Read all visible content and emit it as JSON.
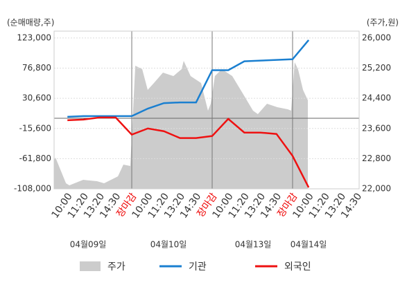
{
  "chart_data": {
    "type": "line",
    "y_label": "(순매매량,주)",
    "y2_label": "(주가,원)",
    "categories": [
      "10:00",
      "11:20",
      "13:20",
      "14:30",
      "장마감",
      "10:00",
      "11:20",
      "13:20",
      "14:30",
      "장마감",
      "10:00",
      "11:20",
      "13:20",
      "14:30",
      "장마감",
      "10:00",
      "11:20",
      "13:20",
      "14:30"
    ],
    "dates": [
      "04월09일",
      "04월10일",
      "04월13일",
      "04월14일"
    ],
    "xlim": [
      -0.83,
      18.14
    ],
    "ylim": [
      -108000,
      133500
    ],
    "yticks": [
      {
        "value": 123000,
        "label": "123,000"
      },
      {
        "value": 76800,
        "label": "76,800"
      },
      {
        "value": 30600,
        "label": "30,600"
      },
      {
        "value": -15600,
        "label": "-15,600"
      },
      {
        "value": -61800,
        "label": "-61,800"
      },
      {
        "value": -108000,
        "label": "-108,000"
      }
    ],
    "y2lim": [
      22000,
      26183
    ],
    "y2ticks": [
      {
        "value": 26000,
        "label": "26,000"
      },
      {
        "value": 25200,
        "label": "25,200"
      },
      {
        "value": 24400,
        "label": "24,400"
      },
      {
        "value": 23600,
        "label": "23,600"
      },
      {
        "value": 22800,
        "label": "22,800"
      },
      {
        "value": 22000,
        "label": "22,000"
      }
    ],
    "grid": true,
    "series": [
      {
        "name": "주가",
        "color": "#cccccc",
        "type": "area",
        "axis": "y2",
        "x": [
          -0.83,
          -0.74,
          -0.09,
          0.12,
          0.98,
          1.84,
          2.28,
          3.14,
          3.48,
          3.91,
          4.22,
          4.65,
          4.99,
          5.38,
          5.94,
          6.59,
          7.1,
          7.23,
          7.66,
          8.31,
          8.74,
          8.91,
          9.17,
          9.6,
          10.25,
          10.9,
          11.54,
          11.84,
          12.41,
          13.05,
          13.7,
          13.91,
          14.13,
          14.34,
          14.65,
          14.95
        ],
        "values": [
          22788,
          22825,
          22146,
          22091,
          22238,
          22201,
          22146,
          22330,
          22642,
          22605,
          25266,
          25174,
          24624,
          24807,
          25083,
          24991,
          25174,
          25395,
          24991,
          24807,
          24073,
          24257,
          24991,
          25174,
          24991,
          24532,
          24073,
          23982,
          24257,
          24165,
          24110,
          24073,
          25358,
          25174,
          24624,
          24349
        ]
      },
      {
        "name": "기관",
        "color": "#1a7fd0",
        "values": [
          2250,
          3300,
          3300,
          3300,
          3300,
          14850,
          23250,
          24300,
          24300,
          73650,
          73650,
          87300,
          88350,
          89400,
          90450,
          119850,
          null,
          null,
          null
        ]
      },
      {
        "name": "외국인",
        "color": "#ee1111",
        "values": [
          -3000,
          -1950,
          1200,
          1200,
          -25050,
          -15600,
          -19800,
          -30300,
          -30300,
          -27150,
          -900,
          -21900,
          -21900,
          -24000,
          -57600,
          -105900,
          null,
          null,
          null
        ]
      }
    ]
  }
}
